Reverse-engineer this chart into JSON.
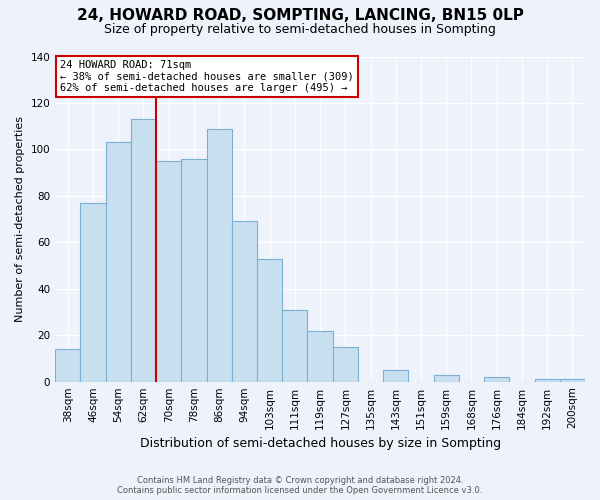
{
  "title": "24, HOWARD ROAD, SOMPTING, LANCING, BN15 0LP",
  "subtitle": "Size of property relative to semi-detached houses in Sompting",
  "xlabel": "Distribution of semi-detached houses by size in Sompting",
  "ylabel": "Number of semi-detached properties",
  "categories": [
    "38sqm",
    "46sqm",
    "54sqm",
    "62sqm",
    "70sqm",
    "78sqm",
    "86sqm",
    "94sqm",
    "103sqm",
    "111sqm",
    "119sqm",
    "127sqm",
    "135sqm",
    "143sqm",
    "151sqm",
    "159sqm",
    "168sqm",
    "176sqm",
    "184sqm",
    "192sqm",
    "200sqm"
  ],
  "values": [
    14,
    77,
    103,
    113,
    95,
    96,
    109,
    69,
    53,
    31,
    22,
    15,
    0,
    5,
    0,
    3,
    0,
    2,
    0,
    1,
    1
  ],
  "bar_color": "#c8dff0",
  "bar_edge_color": "#7ab0d4",
  "highlight_line_color": "#cc0000",
  "annotation_title": "24 HOWARD ROAD: 71sqm",
  "annotation_line1": "← 38% of semi-detached houses are smaller (309)",
  "annotation_line2": "62% of semi-detached houses are larger (495) →",
  "annotation_box_color": "#ffffff",
  "annotation_box_edge": "#cc0000",
  "ylim": [
    0,
    140
  ],
  "yticks": [
    0,
    20,
    40,
    60,
    80,
    100,
    120,
    140
  ],
  "footer_line1": "Contains HM Land Registry data © Crown copyright and database right 2024.",
  "footer_line2": "Contains public sector information licensed under the Open Government Licence v3.0.",
  "background_color": "#eef2fb",
  "grid_color": "#ffffff",
  "title_fontsize": 11,
  "subtitle_fontsize": 9,
  "xlabel_fontsize": 9,
  "ylabel_fontsize": 8,
  "tick_fontsize": 7.5
}
